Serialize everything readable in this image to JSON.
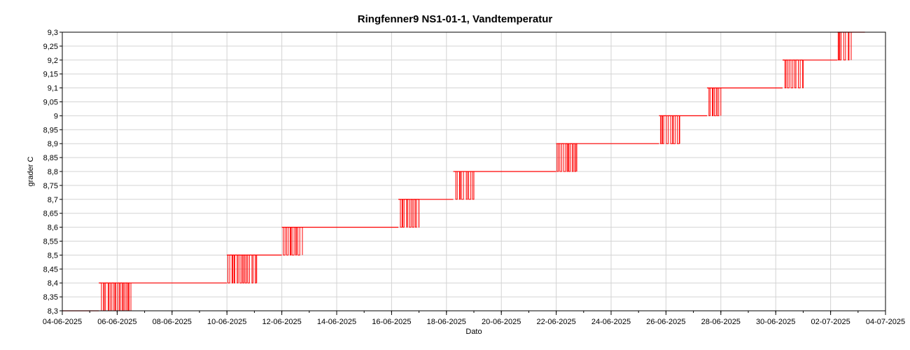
{
  "chart_data": {
    "type": "line",
    "title": "Ringfenner9 NS1-01-1, Vandtemperatur",
    "xlabel": "Dato",
    "ylabel": "grader C",
    "xlim": [
      "04-06-2025",
      "04-07-2025"
    ],
    "ylim": [
      8.3,
      9.3
    ],
    "x_tick_labels": [
      "04-06-2025",
      "06-06-2025",
      "08-06-2025",
      "10-06-2025",
      "12-06-2025",
      "14-06-2025",
      "16-06-2025",
      "18-06-2025",
      "20-06-2025",
      "22-06-2025",
      "24-06-2025",
      "26-06-2025",
      "28-06-2025",
      "30-06-2025",
      "02-07-2025",
      "04-07-2025"
    ],
    "y_tick_labels": [
      "8,3",
      "8,35",
      "8,4",
      "8,45",
      "8,5",
      "8,55",
      "8,6",
      "8,65",
      "8,7",
      "8,75",
      "8,8",
      "8,85",
      "8,9",
      "8,95",
      "9",
      "9,05",
      "9,1",
      "9,15",
      "9,2",
      "9,25",
      "9,3"
    ],
    "grid": true,
    "legend": "none",
    "series": [
      {
        "color": "#ff0000",
        "levels": [
          {
            "start": "04-06-2025",
            "end": "05-06-2025 08:00",
            "value": 8.3
          },
          {
            "start": "05-06-2025 08:00",
            "end": "10-06-2025",
            "value": 8.4
          },
          {
            "start": "10-06-2025",
            "end": "12-06-2025",
            "value": 8.5
          },
          {
            "start": "12-06-2025",
            "end": "16-06-2025 06:00",
            "value": 8.6
          },
          {
            "start": "16-06-2025 06:00",
            "end": "18-06-2025 06:00",
            "value": 8.7
          },
          {
            "start": "18-06-2025 06:00",
            "end": "22-06-2025",
            "value": 8.8
          },
          {
            "start": "22-06-2025",
            "end": "25-06-2025 18:00",
            "value": 8.9
          },
          {
            "start": "25-06-2025 18:00",
            "end": "27-06-2025 12:00",
            "value": 9.0
          },
          {
            "start": "27-06-2025 12:00",
            "end": "30-06-2025 06:00",
            "value": 9.1
          },
          {
            "start": "30-06-2025 06:00",
            "end": "02-07-2025 06:00",
            "value": 9.2
          },
          {
            "start": "02-07-2025 06:00",
            "end": "03-07-2025 06:00",
            "value": 9.3
          }
        ],
        "oscillations": [
          {
            "start": "05-06-2025 08:00",
            "end": "06-06-2025 12:00",
            "low": 8.3,
            "high": 8.4
          },
          {
            "start": "10-06-2025",
            "end": "11-06-2025 02:00",
            "low": 8.4,
            "high": 8.5
          },
          {
            "start": "12-06-2025",
            "end": "12-06-2025 18:00",
            "low": 8.5,
            "high": 8.6
          },
          {
            "start": "16-06-2025 06:00",
            "end": "17-06-2025",
            "low": 8.6,
            "high": 8.7
          },
          {
            "start": "18-06-2025 06:00",
            "end": "19-06-2025",
            "low": 8.7,
            "high": 8.8
          },
          {
            "start": "22-06-2025",
            "end": "22-06-2025 18:00",
            "low": 8.8,
            "high": 8.9
          },
          {
            "start": "25-06-2025 18:00",
            "end": "26-06-2025 12:00",
            "low": 8.9,
            "high": 9.0
          },
          {
            "start": "27-06-2025 12:00",
            "end": "28-06-2025",
            "low": 9.0,
            "high": 9.1
          },
          {
            "start": "30-06-2025 06:00",
            "end": "01-07-2025",
            "low": 9.1,
            "high": 9.2
          },
          {
            "start": "02-07-2025 06:00",
            "end": "02-07-2025 18:00",
            "low": 9.2,
            "high": 9.3
          }
        ]
      }
    ]
  }
}
